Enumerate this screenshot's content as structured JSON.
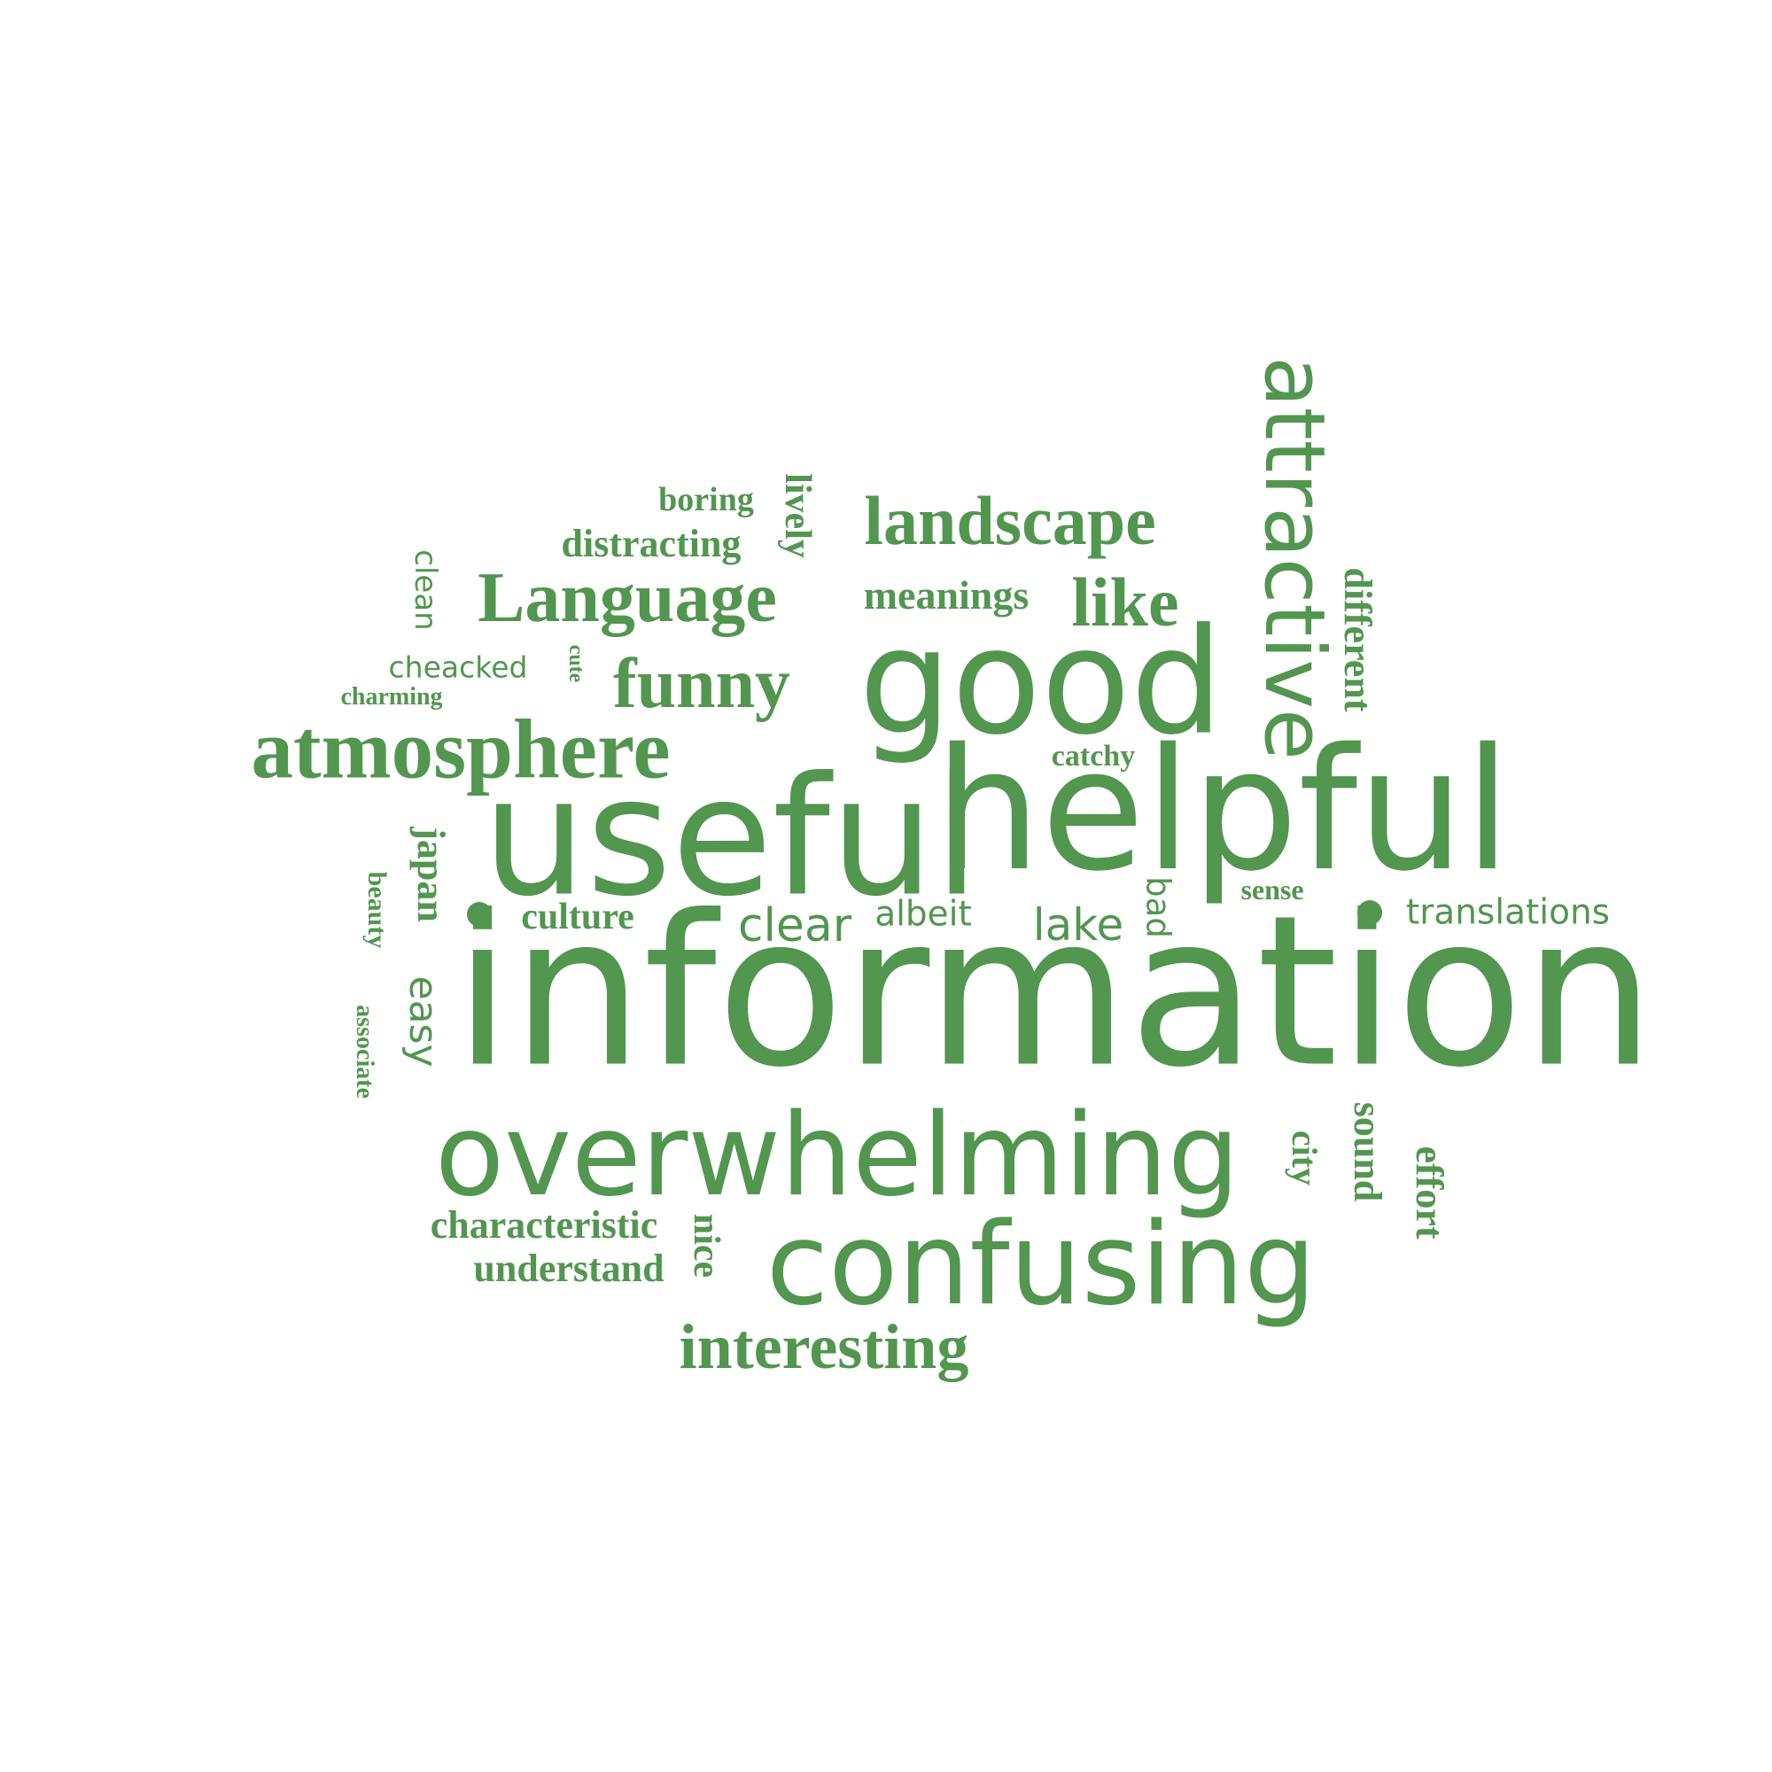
{
  "color": "#52964f",
  "words": {
    "information": "information",
    "useful": "useful",
    "helpful": "helpful",
    "good": "good",
    "overwhelming": "overwhelming",
    "confusing": "confusing",
    "atmosphere": "atmosphere",
    "attractive": "attractive",
    "language": "Language",
    "landscape": "landscape",
    "funny": "funny",
    "like": "like",
    "interesting": "interesting",
    "meanings": "meanings",
    "distracting": "distracting",
    "boring": "boring",
    "lively": "lively",
    "clean": "clean",
    "cute": "cute",
    "cheacked": "cheacked",
    "charming": "charming",
    "different": "different",
    "catchy": "catchy",
    "japan": "japan",
    "beauty": "beauty",
    "culture": "culture",
    "clear": "clear",
    "albeit": "albeit",
    "lake": "lake",
    "bad": "bad",
    "sense": "sense",
    "translations": "translations",
    "easy": "easy",
    "associate": "associate",
    "characteristic": "characteristic",
    "understand": "understand",
    "nice": "nice",
    "city": "city",
    "sound": "sound",
    "effort": "effort"
  }
}
